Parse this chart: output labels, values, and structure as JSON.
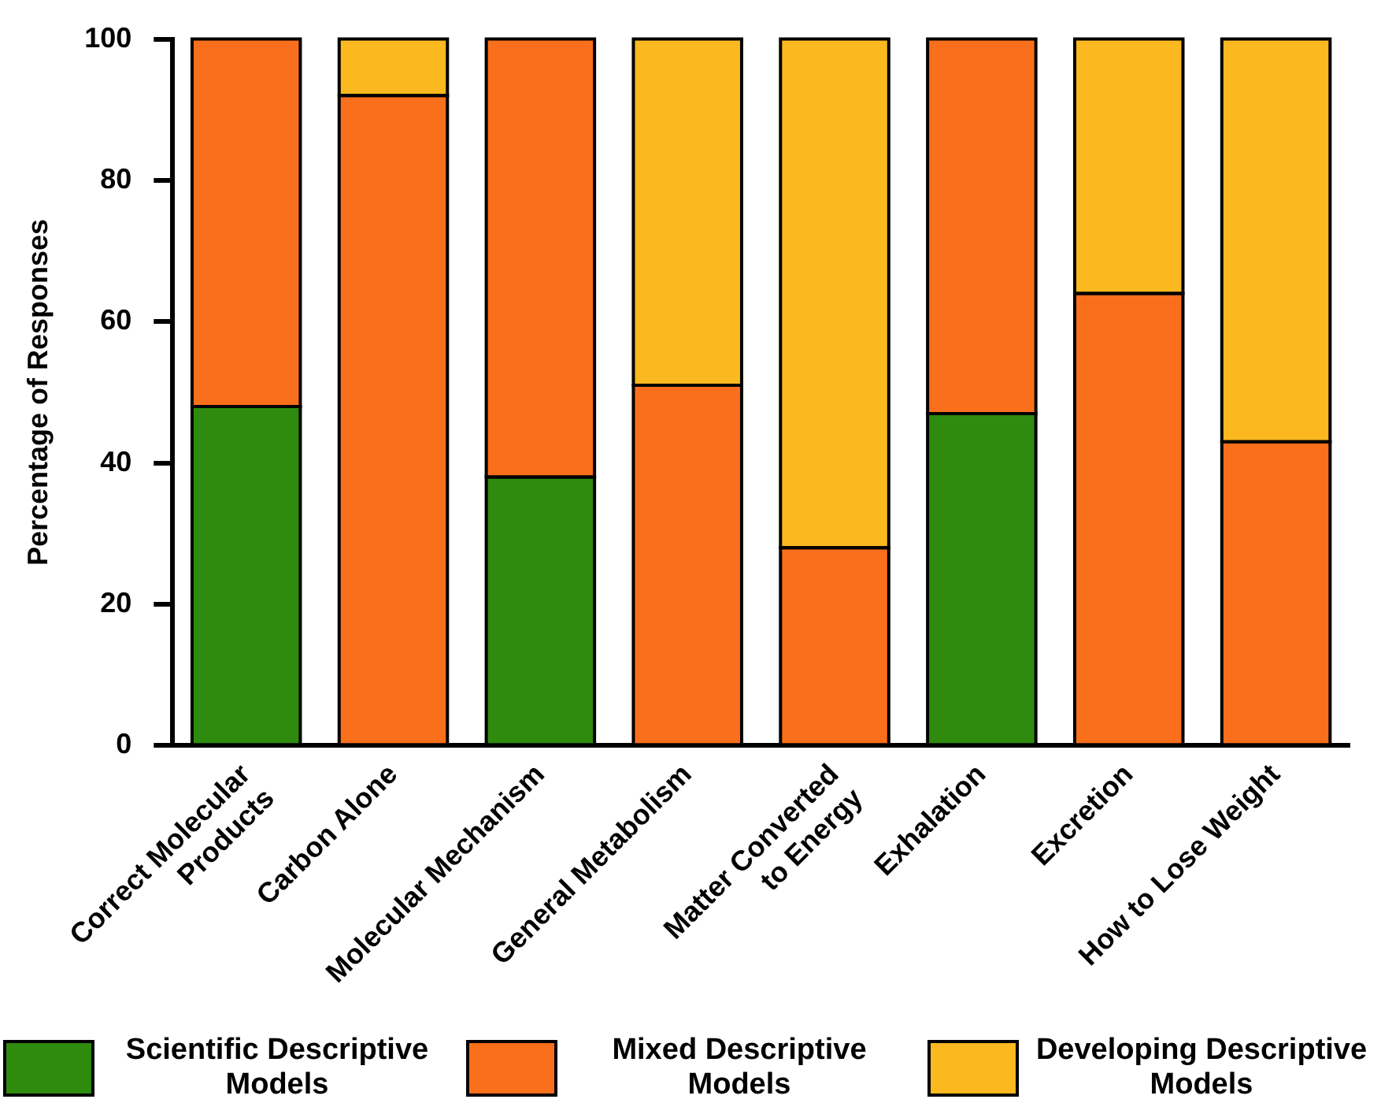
{
  "chart_data": {
    "type": "bar",
    "stacked": true,
    "ylabel": "Percentage of Responses",
    "categories": [
      "Correct Molecular\nProducts",
      "Carbon Alone",
      "Molecular Mechanism",
      "General Metabolism",
      "Matter Converted\nto Energy",
      "Exhalation",
      "Excretion",
      "How to Lose Weight"
    ],
    "series": [
      {
        "name": "Scientific Descriptive Models",
        "color": "#2e8b0e",
        "values": [
          48,
          0,
          38,
          0,
          0,
          47,
          0,
          0
        ]
      },
      {
        "name": "Mixed Descriptive Models",
        "color": "#fa6f1b",
        "values": [
          52,
          92,
          62,
          51,
          28,
          53,
          64,
          43
        ]
      },
      {
        "name": "Developing Descriptive Models",
        "color": "#fcb81f",
        "values": [
          0,
          8,
          0,
          49,
          72,
          0,
          36,
          57
        ]
      }
    ],
    "ylim": [
      0,
      100
    ],
    "yticks": [
      0,
      20,
      40,
      60,
      80,
      100
    ],
    "grid": false,
    "legend": "bottom"
  }
}
